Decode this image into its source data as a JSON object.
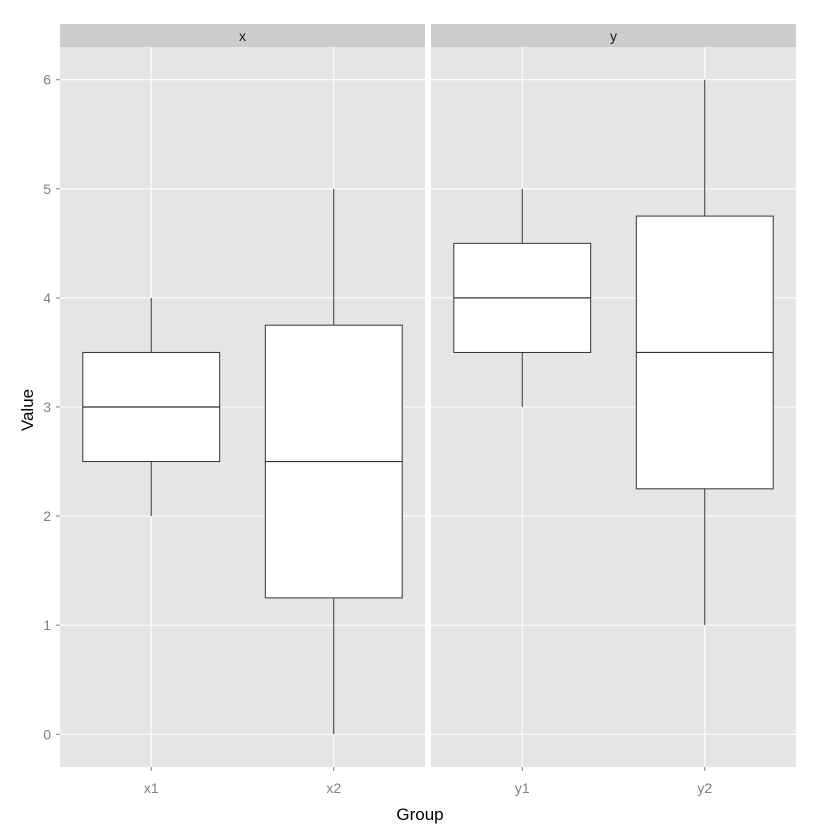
{
  "chart_data": {
    "type": "boxplot",
    "xlabel": "Group",
    "ylabel": "Value",
    "ylim": [
      -0.3,
      6.3
    ],
    "yticks": [
      "0",
      "1",
      "2",
      "3",
      "4",
      "5",
      "6"
    ],
    "grid": true,
    "colors": {
      "panel_bg": "#e5e5e5",
      "strip_bg": "#cccccc",
      "grid_major": "#ffffff",
      "grid_minor": "#f2f2f2",
      "box_fill": "#ffffff",
      "box_stroke": "#333333",
      "tick_text": "#7f7f7f"
    },
    "facets": [
      {
        "strip": "x",
        "categories": [
          "x1",
          "x2"
        ],
        "boxes": [
          {
            "category": "x1",
            "min": 2,
            "q1": 2.5,
            "median": 3,
            "q3": 3.5,
            "max": 4
          },
          {
            "category": "x2",
            "min": 0,
            "q1": 1.25,
            "median": 2.5,
            "q3": 3.75,
            "max": 5
          }
        ]
      },
      {
        "strip": "y",
        "categories": [
          "y1",
          "y2"
        ],
        "boxes": [
          {
            "category": "y1",
            "min": 3,
            "q1": 3.5,
            "median": 4,
            "q3": 4.5,
            "max": 5
          },
          {
            "category": "y2",
            "min": 1,
            "q1": 2.25,
            "median": 3.5,
            "q3": 4.75,
            "max": 6
          }
        ]
      }
    ]
  }
}
